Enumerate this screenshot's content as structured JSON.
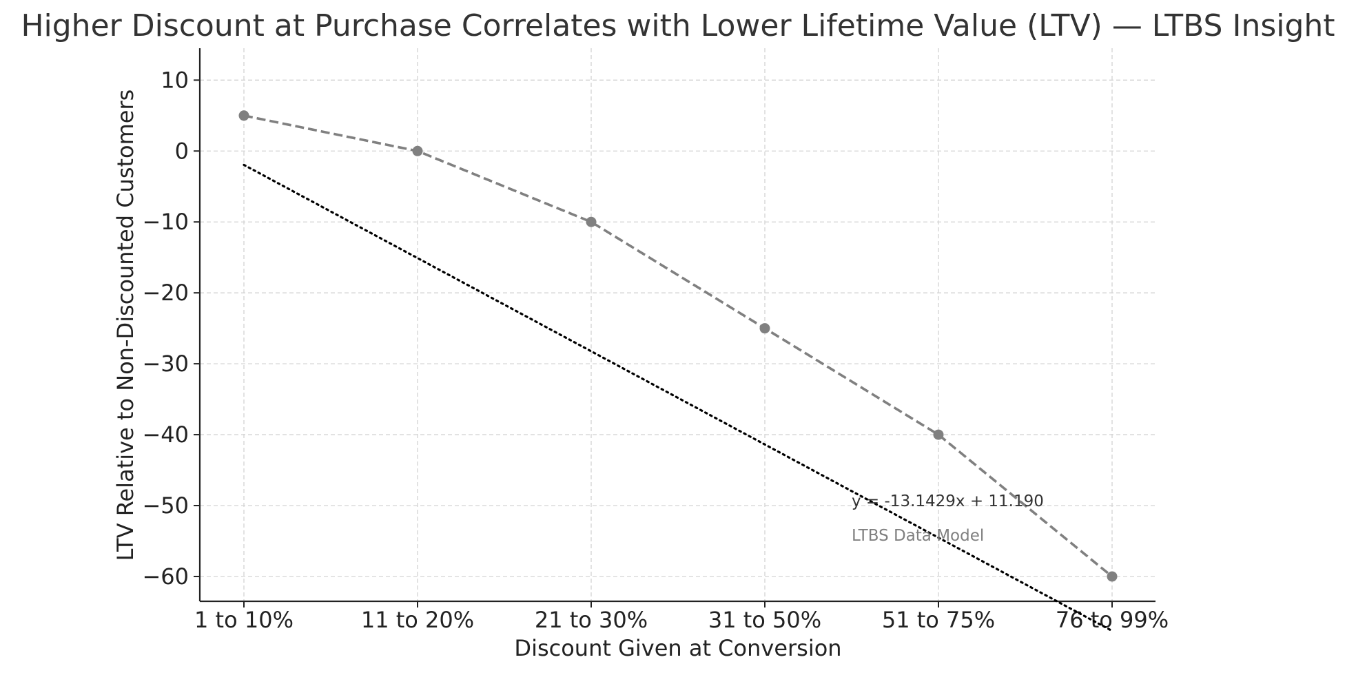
{
  "chart_data": {
    "type": "line",
    "title": "Higher Discount at Purchase Correlates with Lower Lifetime Value (LTV) — LTBS Insight",
    "xlabel": "Discount Given at Conversion",
    "ylabel": "LTV Relative to Non-Discounted Customers",
    "categories": [
      "1 to 10%",
      "11 to 20%",
      "21 to 30%",
      "31 to 50%",
      "51 to 75%",
      "76 to 99%"
    ],
    "series": [
      {
        "name": "LTV",
        "values": [
          5,
          0,
          -10,
          -25,
          -40,
          -60
        ],
        "color": "#808080",
        "style": "dashed",
        "marker": "circle"
      },
      {
        "name": "Trend",
        "slope": -13.1429,
        "intercept": 11.19,
        "color": "#000000",
        "style": "dotted"
      }
    ],
    "yticks": [
      10,
      0,
      -10,
      -20,
      -30,
      -40,
      -50,
      -60
    ],
    "ylim": [
      -63.5,
      14.5
    ],
    "grid": true,
    "annotations": [
      {
        "text": "y = -13.1429x + 11.190",
        "color": "#333333"
      },
      {
        "text": "LTBS Data Model",
        "color": "#808080"
      }
    ]
  }
}
